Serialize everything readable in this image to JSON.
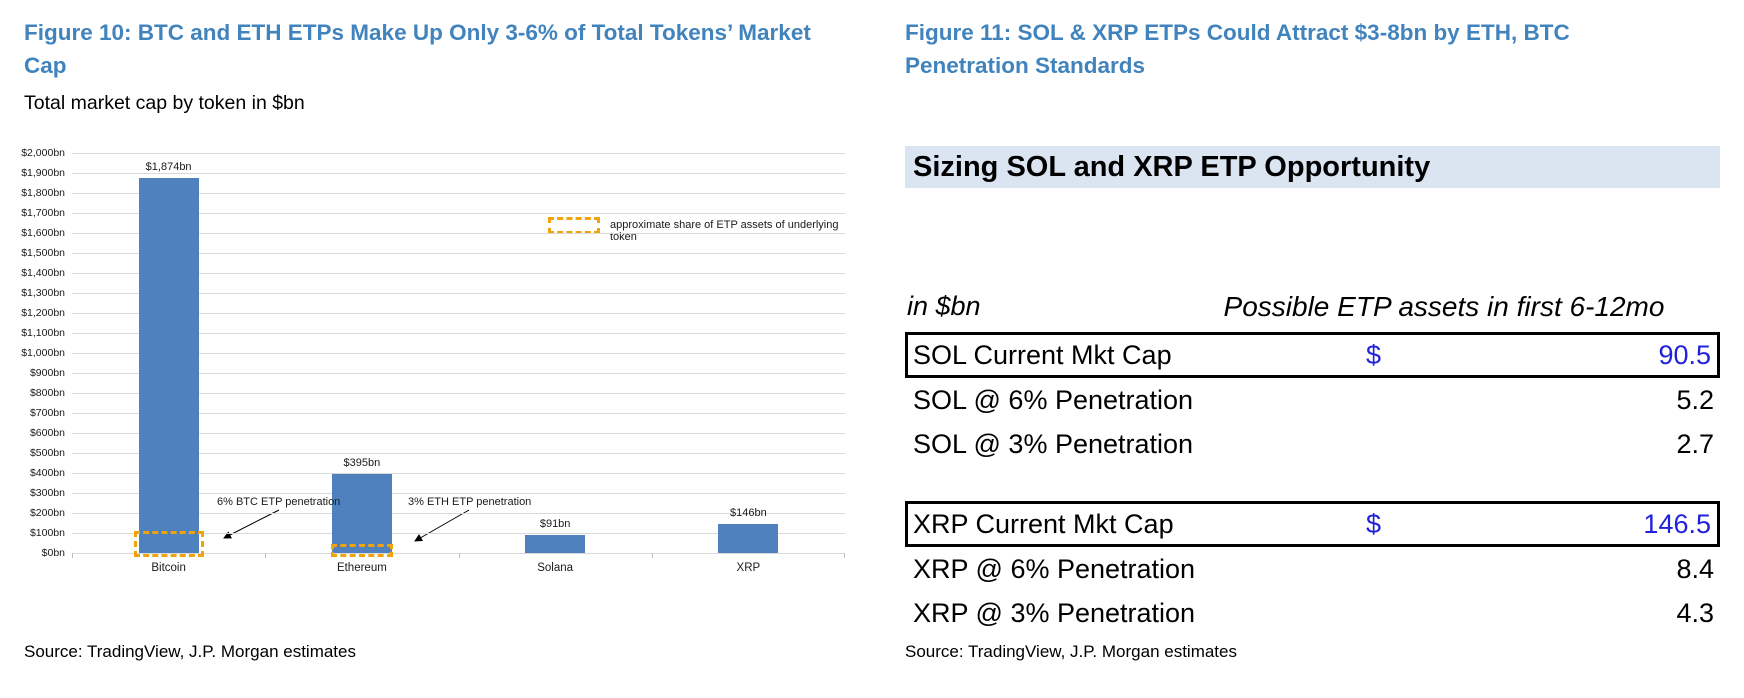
{
  "colors": {
    "title_blue": "#4183bd",
    "bar_blue": "#4e81bd",
    "highlight_orange": "#f0a30a",
    "table_band_bg": "#dbe5f1",
    "value_blue": "#2121dd",
    "gridline_gray": "#d9d9d9"
  },
  "panels": {
    "left": {
      "figure_title": "Figure 10: BTC and ETH ETPs Make Up Only 3-6% of Total Tokens’ Market Cap",
      "subtitle": "Total market cap by token in $bn",
      "source": "Source: TradingView, J.P. Morgan estimates"
    },
    "right": {
      "figure_title": "Figure 11: SOL & XRP ETPs Could Attract $3-8bn by ETH, BTC Penetration Standards",
      "source": "Source: TradingView, J.P. Morgan estimates"
    }
  },
  "chart_data": [
    {
      "type": "bar",
      "title": "Total market cap by token in $bn",
      "categories": [
        "Bitcoin",
        "Ethereum",
        "Solana",
        "XRP"
      ],
      "values": [
        1874,
        395,
        91,
        146
      ],
      "bar_labels": [
        "$1,874bn",
        "$395bn",
        "$91bn",
        "$146bn"
      ],
      "ylim": [
        0,
        2000
      ],
      "ytick_step": 100,
      "ytick_prefix": "$",
      "ytick_suffix": "bn",
      "grid": true,
      "legend": {
        "label": "approximate share of ETP assets of underlying token",
        "position": "upper-right"
      },
      "highlights": [
        {
          "category": "Bitcoin",
          "approx_value": 112,
          "annotation": "6% BTC ETP penetration"
        },
        {
          "category": "Ethereum",
          "approx_value": 12,
          "annotation": "3% ETH ETP penetration"
        }
      ]
    },
    {
      "type": "table",
      "title": "Sizing SOL and XRP ETP Opportunity",
      "unit_label": "in $bn",
      "value_header": "Possible ETP assets in first 6-12mo",
      "groups": [
        {
          "rows": [
            {
              "label": "SOL Current Mkt Cap",
              "currency": "$",
              "value": "90.5",
              "boxed": true,
              "blue": true
            },
            {
              "label": "SOL @ 6% Penetration",
              "currency": "",
              "value": "5.2",
              "boxed": false,
              "blue": false
            },
            {
              "label": "SOL @ 3% Penetration",
              "currency": "",
              "value": "2.7",
              "boxed": false,
              "blue": false
            }
          ]
        },
        {
          "rows": [
            {
              "label": "XRP Current Mkt Cap",
              "currency": "$",
              "value": "146.5",
              "boxed": true,
              "blue": true
            },
            {
              "label": "XRP @ 6% Penetration",
              "currency": "",
              "value": "8.4",
              "boxed": false,
              "blue": false
            },
            {
              "label": "XRP @ 3% Penetration",
              "currency": "",
              "value": "4.3",
              "boxed": false,
              "blue": false
            }
          ]
        }
      ]
    }
  ]
}
